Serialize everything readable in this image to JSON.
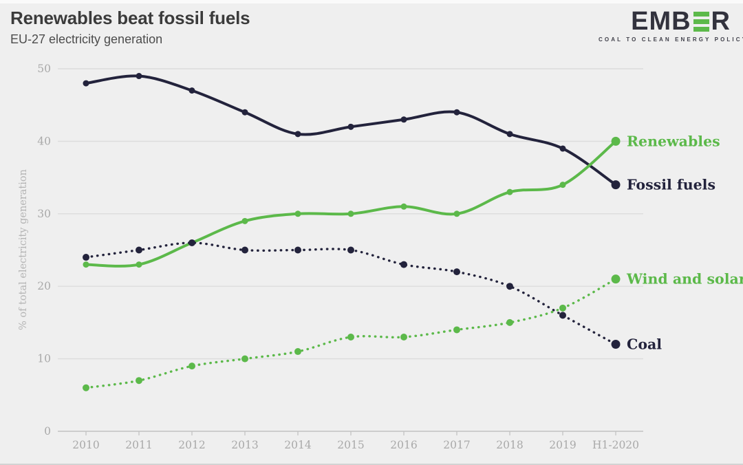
{
  "logo": {
    "text_prefix": "EMB",
    "text_suffix": "R",
    "tagline": "COAL TO CLEAN ENERGY POLICY",
    "accent_color": "#5cb94a"
  },
  "chart_data": {
    "type": "line",
    "title": "Renewables beat fossil fuels",
    "subtitle": "EU-27 electricity generation",
    "ylabel": "% of total electricity generation",
    "xlabel": "",
    "ylim": [
      0,
      50
    ],
    "yticks": [
      0,
      10,
      20,
      30,
      40,
      50
    ],
    "grid": true,
    "legend_position": "labels-at-line-ends",
    "background_color": "#efefef",
    "categories": [
      "2010",
      "2011",
      "2012",
      "2013",
      "2014",
      "2015",
      "2016",
      "2017",
      "2018",
      "2019",
      "H1-2020"
    ],
    "series": [
      {
        "name": "Fossil fuels",
        "color": "#23233c",
        "line_style": "solid",
        "values": [
          48,
          49,
          47,
          44,
          41,
          42,
          43,
          44,
          41,
          39,
          34
        ]
      },
      {
        "name": "Renewables",
        "color": "#5cb94a",
        "line_style": "solid",
        "values": [
          23,
          23,
          26,
          29,
          30,
          30,
          31,
          30,
          33,
          34,
          40
        ]
      },
      {
        "name": "Coal",
        "color": "#23233c",
        "line_style": "dotted",
        "values": [
          24,
          25,
          26,
          25,
          25,
          25,
          23,
          22,
          20,
          16,
          12
        ]
      },
      {
        "name": "Wind and solar",
        "color": "#5cb94a",
        "line_style": "dotted",
        "values": [
          6,
          7,
          9,
          10,
          11,
          13,
          13,
          14,
          15,
          17,
          21
        ]
      }
    ]
  }
}
